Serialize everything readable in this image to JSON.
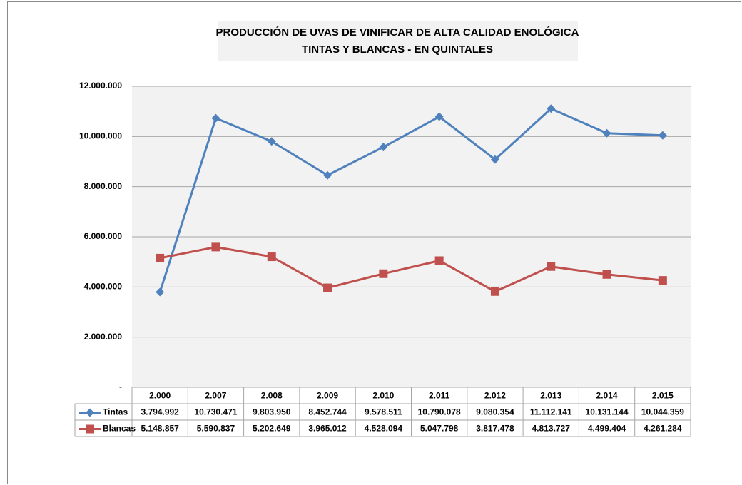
{
  "chart_data": {
    "type": "line",
    "title": "PRODUCCIÓN DE UVAS DE VINIFICAR DE ALTA CALIDAD ENOLÓGICA",
    "subtitle": "TINTAS Y BLANCAS - EN QUINTALES",
    "categories": [
      "2.000",
      "2.007",
      "2.008",
      "2.009",
      "2.010",
      "2.011",
      "2.012",
      "2.013",
      "2.014",
      "2.015"
    ],
    "series": [
      {
        "name": "Tintas",
        "color": "#4f81bd",
        "marker": "diamond",
        "values": [
          3794992,
          10730471,
          9803950,
          8452744,
          9578511,
          10790078,
          9080354,
          11112141,
          10131144,
          10044359
        ],
        "value_labels": [
          "3.794.992",
          "10.730.471",
          "9.803.950",
          "8.452.744",
          "9.578.511",
          "10.790.078",
          "9.080.354",
          "11.112.141",
          "10.131.144",
          "10.044.359"
        ]
      },
      {
        "name": "Blancas",
        "color": "#c0504d",
        "marker": "square",
        "values": [
          5148857,
          5590837,
          5202649,
          3965012,
          4528094,
          5047798,
          3817478,
          4813727,
          4499404,
          4261284
        ],
        "value_labels": [
          "5.148.857",
          "5.590.837",
          "5.202.649",
          "3.965.012",
          "4.528.094",
          "5.047.798",
          "3.817.478",
          "4.813.727",
          "4.499.404",
          "4.261.284"
        ]
      }
    ],
    "ylim": [
      0,
      12000000
    ],
    "yticks": [
      {
        "value": 0,
        "label": "-"
      },
      {
        "value": 2000000,
        "label": "2.000.000"
      },
      {
        "value": 4000000,
        "label": "4.000.000"
      },
      {
        "value": 6000000,
        "label": "6.000.000"
      },
      {
        "value": 8000000,
        "label": "8.000.000"
      },
      {
        "value": 10000000,
        "label": "10.000.000"
      },
      {
        "value": 12000000,
        "label": "12.000.000"
      }
    ],
    "grid": true,
    "data_table": true
  }
}
